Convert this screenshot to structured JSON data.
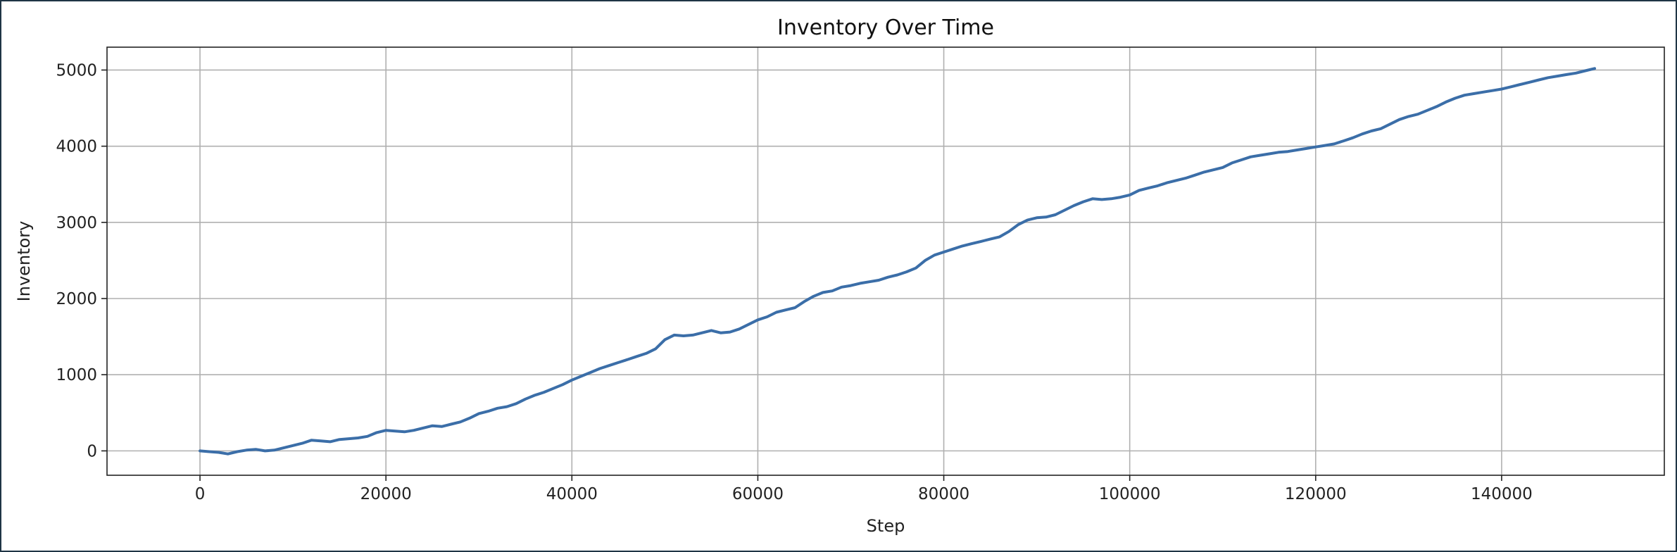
{
  "chart_data": {
    "type": "line",
    "title": "Inventory Over Time",
    "xlabel": "Step",
    "ylabel": "Inventory",
    "xlim": [
      -10000,
      157500
    ],
    "ylim": [
      -320,
      5300
    ],
    "x_ticks": [
      0,
      20000,
      40000,
      60000,
      80000,
      100000,
      120000,
      140000
    ],
    "y_ticks": [
      0,
      1000,
      2000,
      3000,
      4000,
      5000
    ],
    "grid": true,
    "legend": "none",
    "series": [
      {
        "color": "#3b6ea8",
        "x": [
          0,
          1000,
          2000,
          3000,
          4000,
          5000,
          6000,
          7000,
          8000,
          9000,
          10000,
          11000,
          12000,
          13000,
          14000,
          15000,
          16000,
          17000,
          18000,
          19000,
          20000,
          21000,
          22000,
          23000,
          24000,
          25000,
          26000,
          27000,
          28000,
          29000,
          30000,
          31000,
          32000,
          33000,
          34000,
          35000,
          36000,
          37000,
          38000,
          39000,
          40000,
          41000,
          42000,
          43000,
          44000,
          45000,
          46000,
          47000,
          48000,
          49000,
          50000,
          51000,
          52000,
          53000,
          54000,
          55000,
          56000,
          57000,
          58000,
          59000,
          60000,
          61000,
          62000,
          63000,
          64000,
          65000,
          66000,
          67000,
          68000,
          69000,
          70000,
          71000,
          72000,
          73000,
          74000,
          75000,
          76000,
          77000,
          78000,
          79000,
          80000,
          81000,
          82000,
          83000,
          84000,
          85000,
          86000,
          87000,
          88000,
          89000,
          90000,
          91000,
          92000,
          93000,
          94000,
          95000,
          96000,
          97000,
          98000,
          99000,
          100000,
          101000,
          102000,
          103000,
          104000,
          105000,
          106000,
          107000,
          108000,
          109000,
          110000,
          111000,
          112000,
          113000,
          114000,
          115000,
          116000,
          117000,
          118000,
          119000,
          120000,
          121000,
          122000,
          123000,
          124000,
          125000,
          126000,
          127000,
          128000,
          129000,
          130000,
          131000,
          132000,
          133000,
          134000,
          135000,
          136000,
          137000,
          138000,
          139000,
          140000,
          141000,
          142000,
          143000,
          144000,
          145000,
          146000,
          147000,
          148000,
          149000,
          150000
        ],
        "values": [
          0,
          -10,
          -20,
          -40,
          -10,
          10,
          20,
          0,
          10,
          40,
          70,
          100,
          140,
          130,
          120,
          150,
          160,
          170,
          190,
          240,
          270,
          260,
          250,
          270,
          300,
          330,
          320,
          350,
          380,
          430,
          490,
          520,
          560,
          580,
          620,
          680,
          730,
          770,
          820,
          870,
          930,
          980,
          1030,
          1080,
          1120,
          1160,
          1200,
          1240,
          1280,
          1340,
          1460,
          1520,
          1510,
          1520,
          1550,
          1580,
          1550,
          1560,
          1600,
          1660,
          1720,
          1760,
          1820,
          1850,
          1880,
          1960,
          2030,
          2080,
          2100,
          2150,
          2170,
          2200,
          2220,
          2240,
          2280,
          2310,
          2350,
          2400,
          2500,
          2570,
          2610,
          2650,
          2690,
          2720,
          2750,
          2780,
          2810,
          2880,
          2970,
          3030,
          3060,
          3070,
          3100,
          3160,
          3220,
          3270,
          3310,
          3300,
          3310,
          3330,
          3360,
          3420,
          3450,
          3480,
          3520,
          3550,
          3580,
          3620,
          3660,
          3690,
          3720,
          3780,
          3820,
          3860,
          3880,
          3900,
          3920,
          3930,
          3950,
          3970,
          3990,
          4010,
          4030,
          4070,
          4110,
          4160,
          4200,
          4230,
          4290,
          4350,
          4390,
          4420,
          4470,
          4520,
          4580,
          4630,
          4670,
          4690,
          4710,
          4730,
          4750,
          4780,
          4810,
          4840,
          4870,
          4900,
          4920,
          4940,
          4960,
          4990,
          5020
        ]
      }
    ]
  }
}
